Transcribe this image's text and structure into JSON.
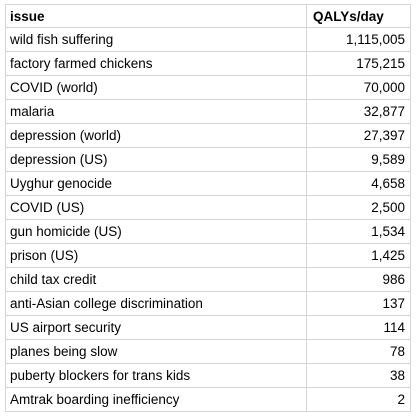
{
  "table": {
    "header": [
      "issue",
      "QALYs/day"
    ],
    "rows": [
      [
        "wild fish suffering",
        "1,115,005"
      ],
      [
        "factory farmed chickens",
        "175,215"
      ],
      [
        "COVID (world)",
        "70,000"
      ],
      [
        "malaria",
        "32,877"
      ],
      [
        "depression (world)",
        "27,397"
      ],
      [
        "depression (US)",
        "9,589"
      ],
      [
        "Uyghur genocide",
        "4,658"
      ],
      [
        "COVID (US)",
        "2,500"
      ],
      [
        "gun homicide (US)",
        "1,534"
      ],
      [
        "prison (US)",
        "1,425"
      ],
      [
        "child tax credit",
        "986"
      ],
      [
        "anti-Asian college discrimination",
        "137"
      ],
      [
        "US airport security",
        "114"
      ],
      [
        "planes being slow",
        "78"
      ],
      [
        "puberty blockers for trans kids",
        "38"
      ],
      [
        "Amtrak boarding inefficiency",
        "2"
      ]
    ]
  }
}
